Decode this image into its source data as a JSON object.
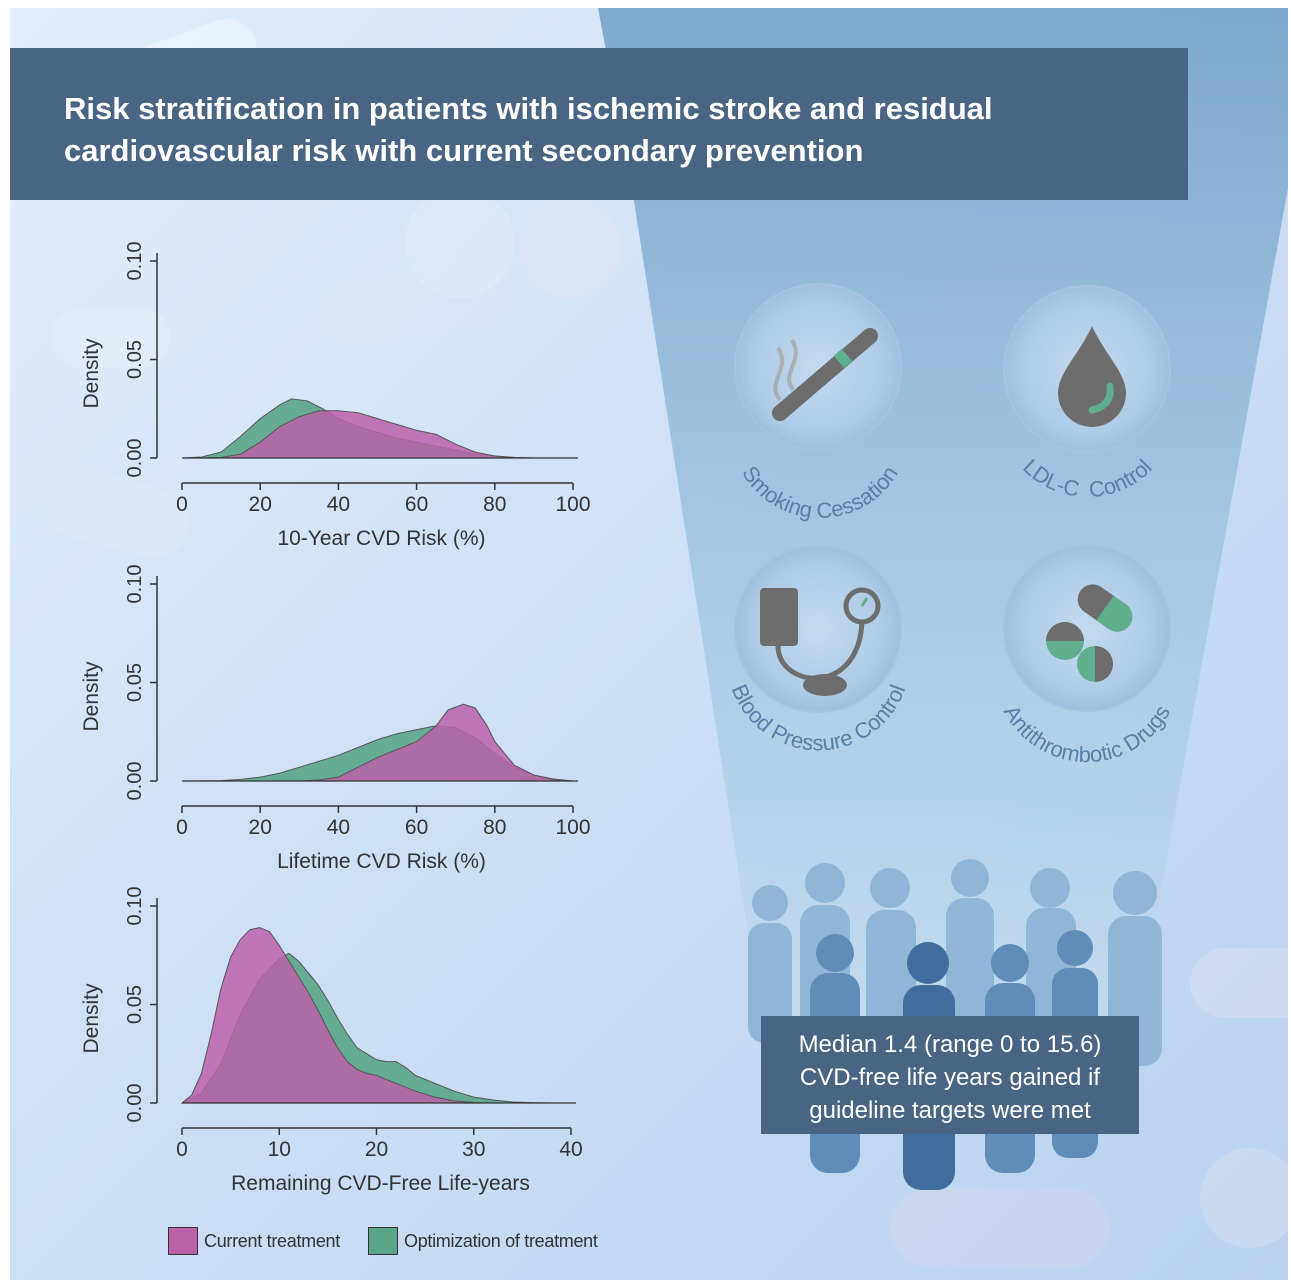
{
  "title": "Risk stratification in patients with ischemic stroke and residual cardiovascular risk with current secondary prevention",
  "colors": {
    "current": "#bb62a9",
    "optimized": "#5aa58a",
    "banner": "#4a6484",
    "icon_gray": "#6d6d6d",
    "icon_green": "#5fae8d",
    "label_blue": "#5a7fa6"
  },
  "interventions": [
    {
      "label": "Smoking Cessation",
      "icon": "cigarette-icon"
    },
    {
      "label": "LDL-C  Control",
      "icon": "blood-drop-icon"
    },
    {
      "label": "Blood Pressure Control",
      "icon": "blood-pressure-cuff-icon"
    },
    {
      "label": "Antithrombotic Drugs",
      "icon": "pills-icon"
    }
  ],
  "callout": {
    "lines": [
      "Median 1.4 (range 0 to 15.6)",
      "CVD-free life years gained if",
      "guideline targets were met"
    ]
  },
  "legend": {
    "current": "Current treatment",
    "optimized": "Optimization of treatment"
  },
  "chart_data": [
    {
      "type": "area",
      "xlabel": "10-Year CVD Risk (%)",
      "ylabel": "Density",
      "xlim": [
        0,
        100
      ],
      "ylim": [
        0,
        0.1
      ],
      "xticks": [
        "0",
        "20",
        "40",
        "60",
        "80",
        "100"
      ],
      "yticks": [
        "0.00",
        "0.05",
        "0.10"
      ],
      "series": [
        {
          "name": "Optimization of treatment",
          "x": [
            0,
            5,
            10,
            15,
            20,
            25,
            28,
            32,
            36,
            40,
            45,
            50,
            55,
            60,
            65,
            70,
            75,
            80,
            85,
            90,
            95,
            100
          ],
          "y": [
            0,
            0.0005,
            0.003,
            0.011,
            0.02,
            0.027,
            0.03,
            0.029,
            0.025,
            0.02,
            0.016,
            0.013,
            0.01,
            0.008,
            0.006,
            0.004,
            0.002,
            0.001,
            0.0003,
            0,
            0,
            0
          ]
        },
        {
          "name": "Current treatment",
          "x": [
            0,
            5,
            10,
            15,
            20,
            25,
            30,
            35,
            40,
            45,
            50,
            55,
            60,
            65,
            70,
            75,
            80,
            85,
            90,
            95,
            100
          ],
          "y": [
            0,
            0,
            0.0003,
            0.002,
            0.008,
            0.016,
            0.021,
            0.024,
            0.024,
            0.023,
            0.02,
            0.017,
            0.014,
            0.012,
            0.007,
            0.003,
            0.001,
            0.0002,
            0,
            0,
            0
          ]
        }
      ]
    },
    {
      "type": "area",
      "xlabel": "Lifetime CVD Risk (%)",
      "ylabel": "Density",
      "xlim": [
        0,
        100
      ],
      "ylim": [
        0,
        0.1
      ],
      "xticks": [
        "0",
        "20",
        "40",
        "60",
        "80",
        "100"
      ],
      "yticks": [
        "0.00",
        "0.05",
        "0.10"
      ],
      "series": [
        {
          "name": "Optimization of treatment",
          "x": [
            0,
            10,
            15,
            20,
            25,
            30,
            35,
            40,
            45,
            50,
            55,
            60,
            65,
            70,
            75,
            80,
            85,
            90,
            95,
            100
          ],
          "y": [
            0,
            0.0002,
            0.0008,
            0.002,
            0.004,
            0.007,
            0.01,
            0.013,
            0.017,
            0.021,
            0.024,
            0.026,
            0.028,
            0.027,
            0.022,
            0.014,
            0.007,
            0.003,
            0.001,
            0
          ]
        },
        {
          "name": "Current treatment",
          "x": [
            0,
            30,
            35,
            40,
            45,
            50,
            55,
            60,
            65,
            68,
            72,
            75,
            78,
            80,
            85,
            90,
            95,
            100
          ],
          "y": [
            0,
            0,
            0.0005,
            0.002,
            0.007,
            0.012,
            0.016,
            0.02,
            0.028,
            0.036,
            0.039,
            0.037,
            0.028,
            0.02,
            0.008,
            0.003,
            0.0008,
            0
          ]
        }
      ]
    },
    {
      "type": "area",
      "xlabel": "Remaining CVD-Free Life-years",
      "ylabel": "Density",
      "xlim": [
        0,
        40
      ],
      "ylim": [
        0,
        0.1
      ],
      "xticks": [
        "0",
        "10",
        "20",
        "30",
        "40"
      ],
      "yticks": [
        "0.00",
        "0.05",
        "0.10"
      ],
      "series": [
        {
          "name": "Optimization of treatment",
          "x": [
            0,
            2,
            4,
            6,
            8,
            10,
            11,
            12,
            13,
            14,
            15,
            16,
            17,
            18,
            19,
            20,
            21,
            22,
            23,
            24,
            26,
            28,
            30,
            32,
            34,
            36,
            38
          ],
          "y": [
            0,
            0.005,
            0.02,
            0.045,
            0.063,
            0.073,
            0.076,
            0.072,
            0.066,
            0.06,
            0.052,
            0.043,
            0.035,
            0.028,
            0.025,
            0.022,
            0.021,
            0.021,
            0.018,
            0.014,
            0.01,
            0.006,
            0.003,
            0.0015,
            0.0005,
            0.0002,
            0
          ]
        },
        {
          "name": "Current treatment",
          "x": [
            0,
            1,
            2,
            3,
            4,
            5,
            6,
            7,
            8,
            9,
            10,
            11,
            12,
            13,
            14,
            15,
            16,
            17,
            18,
            19,
            20,
            21,
            22,
            23,
            24,
            26,
            28,
            30,
            32
          ],
          "y": [
            0,
            0.004,
            0.015,
            0.035,
            0.058,
            0.074,
            0.083,
            0.088,
            0.089,
            0.087,
            0.08,
            0.072,
            0.064,
            0.056,
            0.047,
            0.037,
            0.028,
            0.021,
            0.017,
            0.015,
            0.014,
            0.012,
            0.01,
            0.008,
            0.006,
            0.003,
            0.001,
            0.0003,
            0
          ]
        }
      ]
    }
  ]
}
